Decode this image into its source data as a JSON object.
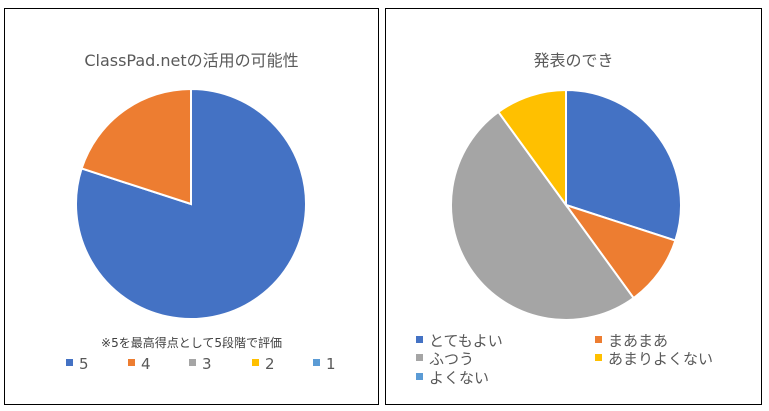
{
  "chart_data": [
    {
      "type": "pie",
      "title": "ClassPad.netの活用の可能性",
      "note": "※5を最高得点として5段階で評価",
      "categories": [
        "5",
        "4",
        "3",
        "2",
        "1"
      ],
      "values": [
        80,
        20,
        0,
        0,
        0
      ],
      "colors": [
        "#4472c4",
        "#ed7d31",
        "#a5a5a5",
        "#ffc000",
        "#5b9bd5"
      ],
      "legend": "bottom"
    },
    {
      "type": "pie",
      "title": "発表のでき",
      "categories": [
        "とてもよい",
        "まあまあ",
        "ふつう",
        "あまりよくない",
        "よくない"
      ],
      "values": [
        30,
        10,
        50,
        10,
        0
      ],
      "colors": [
        "#4472c4",
        "#ed7d31",
        "#a5a5a5",
        "#ffc000",
        "#5b9bd5"
      ],
      "legend": "bottom"
    }
  ]
}
